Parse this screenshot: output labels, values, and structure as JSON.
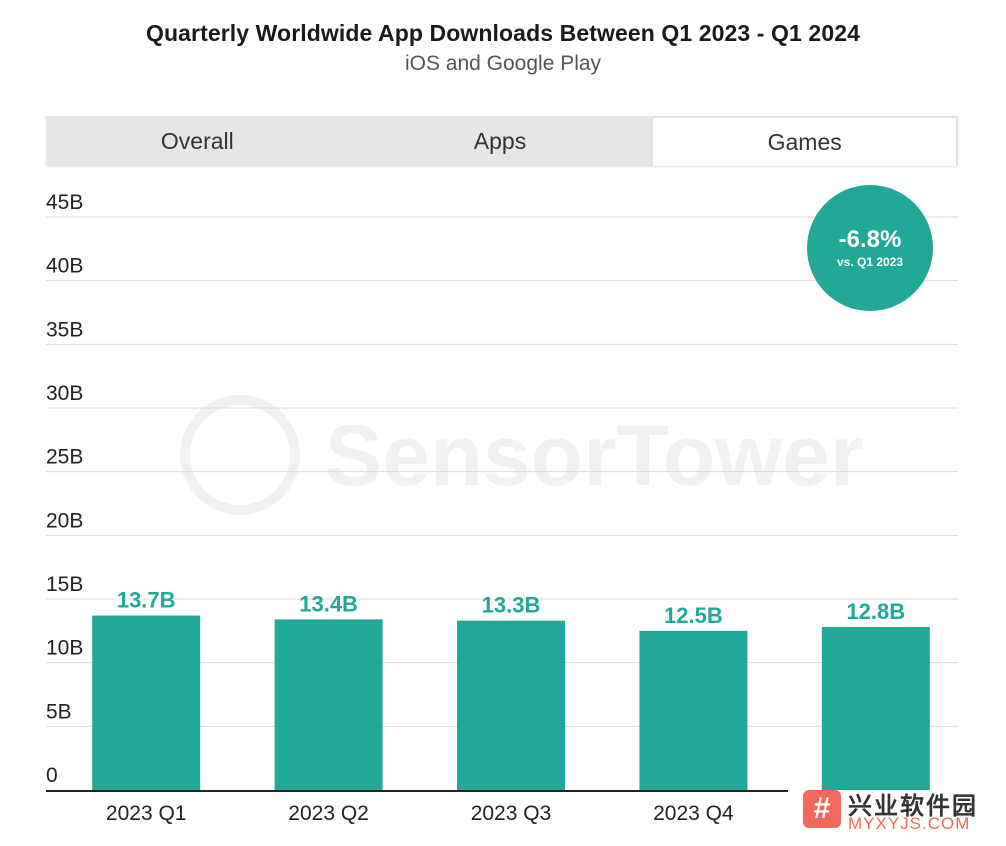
{
  "header": {
    "title": "Quarterly Worldwide App Downloads Between Q1 2023 - Q1 2024",
    "subtitle": "iOS and Google Play"
  },
  "tabs": [
    {
      "label": "Overall",
      "active": false
    },
    {
      "label": "Apps",
      "active": false
    },
    {
      "label": "Games",
      "active": true
    }
  ],
  "badge": {
    "value": "-6.8%",
    "comparison": "vs. Q1 2023",
    "color": "#21a898"
  },
  "background_watermark": "SensorTower",
  "corner_watermark": {
    "icon_glyph": "#",
    "chinese_text": "兴业软件园",
    "url": "MYXYJS.COM"
  },
  "chart_data": {
    "type": "bar",
    "categories": [
      "2023 Q1",
      "2023 Q2",
      "2023 Q3",
      "2023 Q4",
      ""
    ],
    "values": [
      13.7,
      13.4,
      13.3,
      12.5,
      12.8
    ],
    "data_labels": [
      "13.7B",
      "13.4B",
      "13.3B",
      "12.5B",
      "12.8B"
    ],
    "y_ticks": [
      "0",
      "5B",
      "10B",
      "15B",
      "20B",
      "25B",
      "30B",
      "35B",
      "40B",
      "45B"
    ],
    "ylim": [
      0,
      45
    ],
    "y_step": 5,
    "grid": true,
    "bar_color": "#21a898",
    "label_color": "#21a898",
    "xlabel": "",
    "ylabel": ""
  }
}
